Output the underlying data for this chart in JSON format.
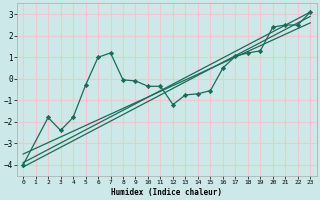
{
  "xlabel": "Humidex (Indice chaleur)",
  "bg_color": "#cce8e8",
  "grid_color": "#f0c8c8",
  "line_color": "#1a6b5a",
  "xlim": [
    -0.5,
    23.5
  ],
  "ylim": [
    -4.5,
    3.5
  ],
  "xticks": [
    0,
    1,
    2,
    3,
    4,
    5,
    6,
    7,
    8,
    9,
    10,
    11,
    12,
    13,
    14,
    15,
    16,
    17,
    18,
    19,
    20,
    21,
    22,
    23
  ],
  "yticks": [
    -4,
    -3,
    -2,
    -1,
    0,
    1,
    2,
    3
  ],
  "line1_x": [
    0,
    2,
    3,
    4,
    5,
    6,
    7,
    8,
    9,
    10,
    11,
    12,
    13,
    14,
    15,
    16,
    17,
    18,
    19,
    20,
    21,
    22,
    23
  ],
  "line1_y": [
    -4.0,
    -1.8,
    -2.4,
    -1.8,
    -0.3,
    1.0,
    1.2,
    -0.05,
    -0.1,
    -0.35,
    -0.35,
    -1.2,
    -0.75,
    -0.7,
    -0.55,
    0.5,
    1.05,
    1.2,
    1.3,
    2.4,
    2.5,
    2.5,
    3.1
  ],
  "line2_x": [
    0,
    23
  ],
  "line2_y": [
    -3.9,
    3.1
  ],
  "line3_x": [
    0,
    23
  ],
  "line3_y": [
    -3.5,
    2.6
  ],
  "line4_x": [
    0,
    23
  ],
  "line4_y": [
    -4.1,
    2.9
  ]
}
